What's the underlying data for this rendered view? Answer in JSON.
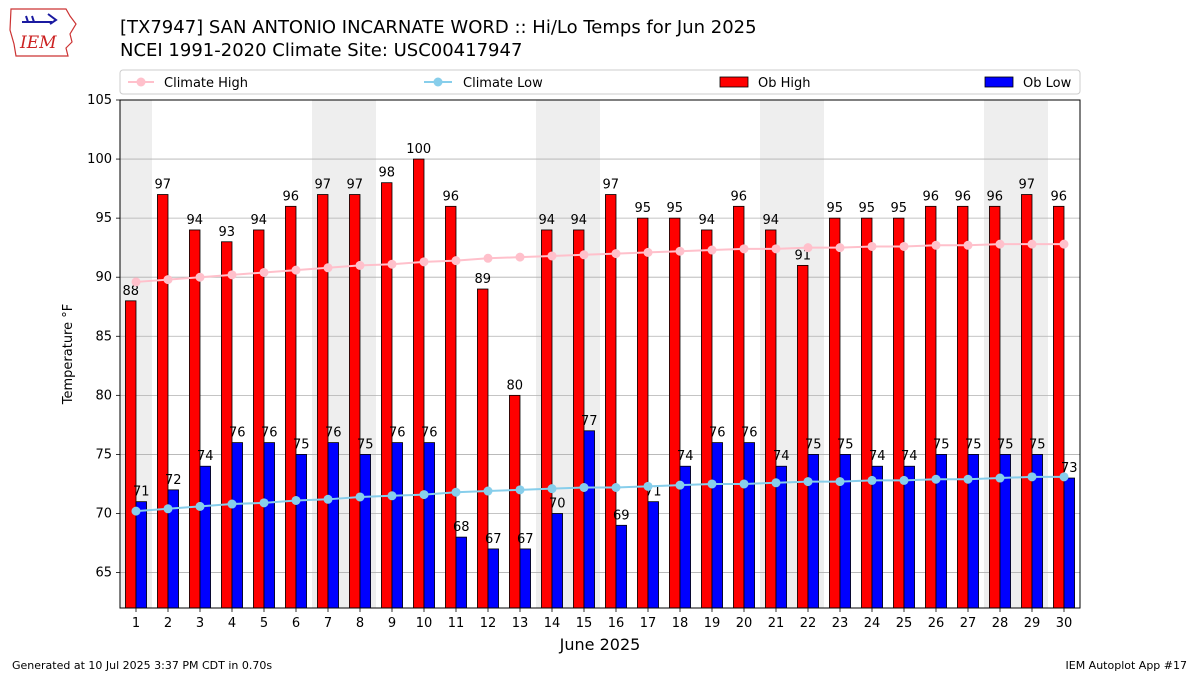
{
  "header": {
    "title": "[TX7947] SAN ANTONIO INCARNATE WORD :: Hi/Lo Temps for Jun 2025",
    "subtitle": "NCEI 1991-2020 Climate Site: USC00417947"
  },
  "logo": {
    "text": "IEM",
    "icon": "iowa-state-outline-logo"
  },
  "footer": {
    "left": "Generated at 10 Jul 2025 3:37 PM CDT in 0.70s",
    "right": "IEM Autoplot App #17"
  },
  "colors": {
    "ob_high": "#ff0000",
    "ob_low": "#0000ff",
    "climate_high": "#ffc0cb",
    "climate_low": "#87ceeb",
    "weekend_band": "#eeeeee",
    "grid": "#b0b0b0"
  },
  "chart_data": {
    "type": "bar",
    "xlabel": "June 2025",
    "ylabel": "Temperature °F",
    "ylim": [
      62,
      105
    ],
    "yticks": [
      65,
      70,
      75,
      80,
      85,
      90,
      95,
      100,
      105
    ],
    "grid": true,
    "legend_placement": "top",
    "categories": [
      "1",
      "2",
      "3",
      "4",
      "5",
      "6",
      "7",
      "8",
      "9",
      "10",
      "11",
      "12",
      "13",
      "14",
      "15",
      "16",
      "17",
      "18",
      "19",
      "20",
      "21",
      "22",
      "23",
      "24",
      "25",
      "26",
      "27",
      "28",
      "29",
      "30"
    ],
    "shaded_days": [
      "1",
      "7",
      "8",
      "14",
      "15",
      "21",
      "22",
      "28",
      "29"
    ],
    "series": [
      {
        "name": "Climate High",
        "kind": "line",
        "values": [
          89.6,
          89.8,
          90.0,
          90.2,
          90.4,
          90.6,
          90.8,
          91.0,
          91.1,
          91.3,
          91.4,
          91.6,
          91.7,
          91.8,
          91.9,
          92.0,
          92.1,
          92.2,
          92.3,
          92.4,
          92.4,
          92.5,
          92.5,
          92.6,
          92.6,
          92.7,
          92.7,
          92.8,
          92.8,
          92.8
        ]
      },
      {
        "name": "Climate Low",
        "kind": "line",
        "values": [
          70.2,
          70.4,
          70.6,
          70.8,
          70.9,
          71.1,
          71.2,
          71.4,
          71.5,
          71.6,
          71.8,
          71.9,
          72.0,
          72.1,
          72.2,
          72.2,
          72.3,
          72.4,
          72.5,
          72.5,
          72.6,
          72.7,
          72.7,
          72.8,
          72.8,
          72.9,
          72.9,
          73.0,
          73.1,
          73.1
        ]
      },
      {
        "name": "Ob High",
        "kind": "bar",
        "values": [
          88,
          97,
          94,
          93,
          94,
          96,
          97,
          97,
          98,
          100,
          96,
          89,
          80,
          94,
          94,
          97,
          95,
          95,
          94,
          96,
          94,
          91,
          95,
          95,
          95,
          96,
          96,
          96,
          97,
          96
        ]
      },
      {
        "name": "Ob Low",
        "kind": "bar",
        "values": [
          71,
          72,
          74,
          76,
          76,
          75,
          76,
          75,
          76,
          76,
          68,
          67,
          67,
          70,
          77,
          69,
          71,
          74,
          76,
          76,
          74,
          75,
          75,
          74,
          74,
          75,
          75,
          75,
          75,
          73
        ]
      }
    ]
  }
}
